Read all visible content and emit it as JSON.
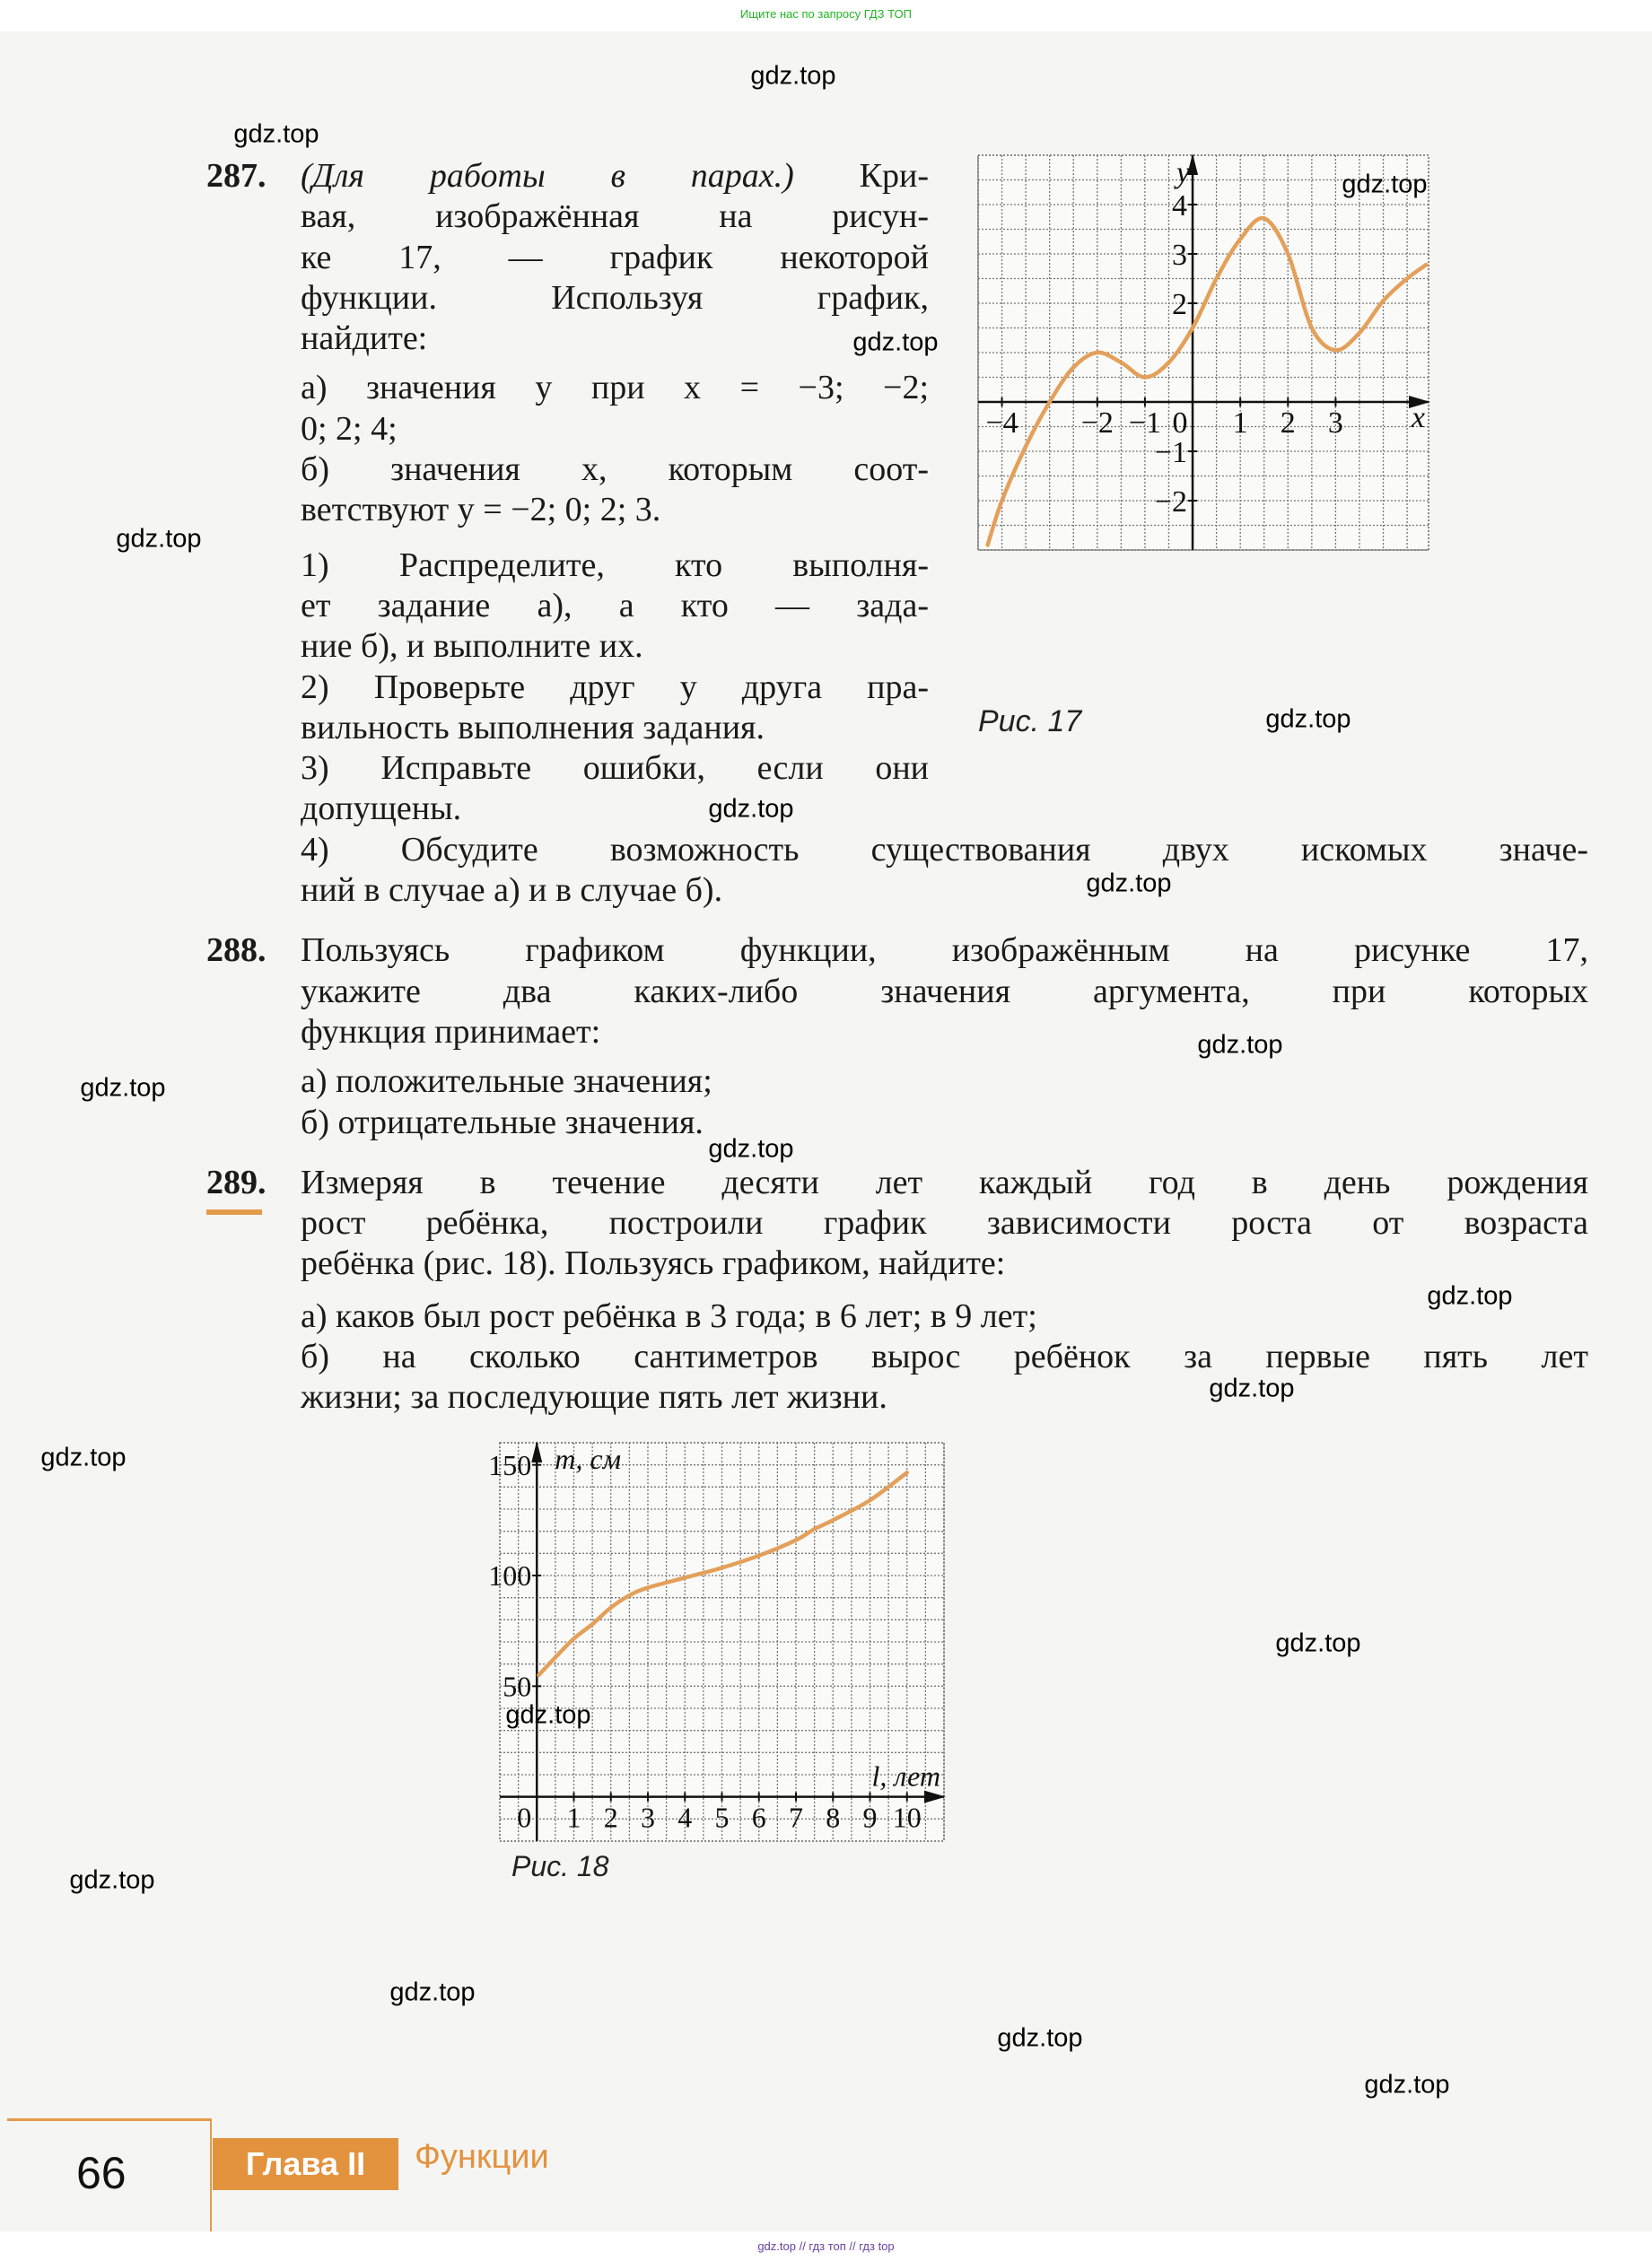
{
  "top_note": "Ищите нас по запросу ГДЗ ТОП",
  "bottom_note": "gdz.top // гдз топ // гдз top",
  "watermark": "gdz.top",
  "problems": [
    {
      "number": "287.",
      "paragraphs": [
        {
          "lines": [
            "(Для работы в парах.) Кри-",
            "вая, изображённая на рисун-",
            "ке 17, — график некоторой",
            "функции. Используя график,",
            "найдите:"
          ]
        },
        {
          "lines": [
            "а) значения y при x = −3; −2;",
            "0; 2; 4;"
          ]
        },
        {
          "lines": [
            "б) значения x, которым соот-",
            "ветствуют y = −2; 0; 2; 3."
          ]
        },
        {
          "lines": [
            "1) Распределите, кто выполня-",
            "ет задание а), а кто — зада-",
            "ние б), и выполните их."
          ]
        },
        {
          "lines": [
            "2) Проверьте друг у друга пра-",
            "вильность выполнения задания."
          ]
        },
        {
          "lines": [
            "3) Исправьте ошибки, если они",
            "допущены."
          ]
        },
        {
          "lines": [
            "4) Обсудите возможность существования двух искомых значе-",
            "ний в случае а) и в случае б)."
          ]
        }
      ]
    },
    {
      "number": "288.",
      "paragraphs": [
        {
          "lines": [
            "Пользуясь графиком функции, изображённым на рисунке 17,",
            "укажите два каких-либо значения аргумента, при которых",
            "функция принимает:"
          ]
        },
        {
          "lines": [
            "а) положительные значения;"
          ]
        },
        {
          "lines": [
            "б) отрицательные значения."
          ]
        }
      ]
    },
    {
      "number": "289.",
      "paragraphs": [
        {
          "lines": [
            "Измеряя в течение десяти лет каждый год в день рождения",
            "рост ребёнка, построили график зависимости роста от возраста",
            "ребёнка (рис. 18). Пользуясь графиком, найдите:"
          ]
        },
        {
          "lines": [
            "а) каков был рост ребёнка в 3 года; в 6 лет; в 9 лет;"
          ]
        },
        {
          "lines": [
            "б) на сколько сантиметров вырос ребёнок за первые пять лет",
            "жизни; за последующие пять лет жизни."
          ]
        }
      ]
    }
  ],
  "footer": {
    "page_number": "66",
    "chapter": "Глава II",
    "chapter_title": "Функции"
  },
  "colors": {
    "accent": "#e3923e",
    "curve": "#e3a05a"
  },
  "chart_data": [
    {
      "type": "line",
      "caption": "Рис. 17",
      "xlabel": "x",
      "ylabel": "y",
      "xlim": [
        -4.5,
        4.95
      ],
      "ylim": [
        -3,
        5
      ],
      "grid": true,
      "grid_step": 0.5,
      "x_ticks": [
        "−4",
        "−2",
        "−1",
        "0",
        "1",
        "2",
        "3"
      ],
      "x_tick_values": [
        -4,
        -2,
        -1,
        0,
        1,
        2,
        3
      ],
      "y_ticks": [
        "4",
        "3",
        "2",
        "−1",
        "−2"
      ],
      "y_tick_values": [
        4,
        3,
        2,
        -1,
        -2
      ],
      "series": [
        {
          "x": [
            -4.3,
            -4,
            -3.5,
            -3,
            -2.5,
            -2,
            -1.5,
            -1,
            -0.5,
            0,
            0.5,
            1,
            1.5,
            2,
            2.5,
            3,
            3.5,
            4,
            4.5,
            4.9
          ],
          "y": [
            -2.9,
            -2,
            -0.9,
            0,
            0.7,
            1.0,
            0.8,
            0.5,
            0.8,
            1.5,
            2.5,
            3.3,
            3.72,
            3.0,
            1.5,
            1.05,
            1.4,
            2.05,
            2.5,
            2.78
          ]
        }
      ]
    },
    {
      "type": "line",
      "caption": "Рис. 18",
      "xlabel": "l, лет",
      "ylabel": "m, см",
      "xlim": [
        -1,
        11
      ],
      "ylim": [
        -20,
        160
      ],
      "grid": true,
      "grid_step_x": 0.5,
      "grid_step_y": 10,
      "x_ticks": [
        "0",
        "1",
        "2",
        "3",
        "4",
        "5",
        "6",
        "7",
        "8",
        "9",
        "10"
      ],
      "x_tick_values": [
        0,
        1,
        2,
        3,
        4,
        5,
        6,
        7,
        8,
        9,
        10
      ],
      "y_ticks": [
        "150",
        "100",
        "50"
      ],
      "y_tick_values": [
        150,
        100,
        50
      ],
      "series": [
        {
          "x": [
            0.05,
            0.5,
            1,
            1.5,
            2,
            2.5,
            3,
            4,
            5,
            6,
            7,
            7.5,
            8,
            9,
            10
          ],
          "y": [
            55,
            63,
            71.5,
            78,
            85.5,
            91,
            94.5,
            99,
            103.5,
            109,
            116,
            121,
            125,
            134,
            146.5
          ]
        }
      ]
    }
  ]
}
